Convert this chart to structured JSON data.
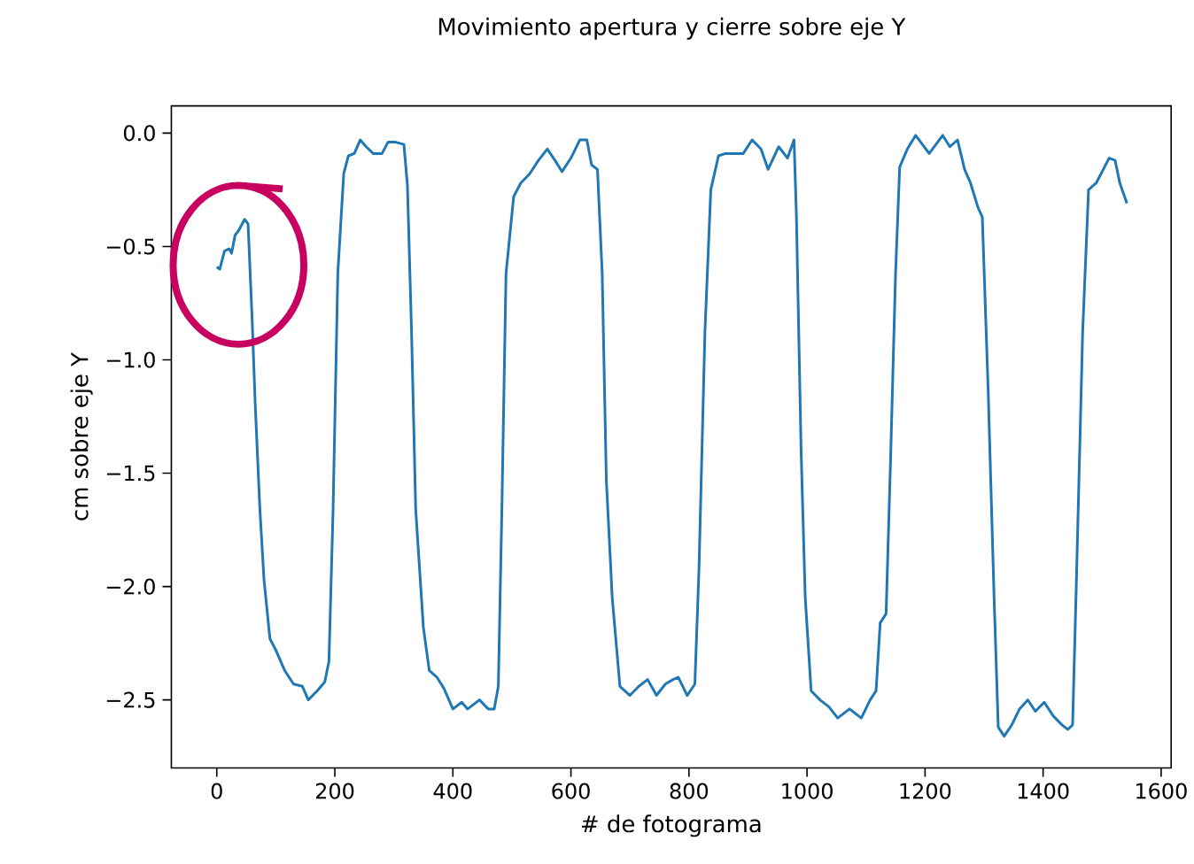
{
  "chart_data": {
    "type": "line",
    "title": "Movimiento apertura y cierre sobre eje Y",
    "xlabel": "# de fotograma",
    "ylabel": "cm sobre eje Y",
    "xlim": [
      -77,
      1617
    ],
    "ylim": [
      -2.8,
      0.12
    ],
    "xticks": [
      0,
      200,
      400,
      600,
      800,
      1000,
      1200,
      1400,
      1600
    ],
    "yticks": [
      {
        "value": 0,
        "label": "0.0"
      },
      {
        "value": -0.5,
        "label": "−0.5"
      },
      {
        "value": -1,
        "label": "−1.0"
      },
      {
        "value": -1.5,
        "label": "−1.5"
      },
      {
        "value": -2,
        "label": "−2.0"
      },
      {
        "value": -2.5,
        "label": "−2.5"
      }
    ],
    "grid": false,
    "marker": "none",
    "line_style": "solid",
    "series": [
      {
        "color": "#1f77b4",
        "x": [
          0,
          5,
          13,
          21,
          25,
          31,
          37,
          47,
          53,
          60,
          65,
          73,
          80,
          90,
          100,
          115,
          130,
          145,
          155,
          170,
          183,
          190,
          197,
          205,
          215,
          223,
          233,
          243,
          253,
          265,
          280,
          290,
          303,
          317,
          323,
          330,
          337,
          350,
          360,
          373,
          385,
          400,
          415,
          425,
          445,
          460,
          470,
          477,
          483,
          490,
          503,
          515,
          530,
          545,
          560,
          573,
          585,
          600,
          615,
          627,
          635,
          645,
          653,
          660,
          670,
          683,
          700,
          715,
          730,
          745,
          760,
          773,
          782,
          797,
          810,
          817,
          827,
          837,
          850,
          862,
          882,
          892,
          907,
          922,
          934,
          952,
          967,
          978,
          982,
          990,
          997,
          1007,
          1022,
          1037,
          1052,
          1072,
          1092,
          1107,
          1117,
          1124,
          1134,
          1142,
          1150,
          1157,
          1170,
          1184,
          1207,
          1230,
          1242,
          1255,
          1267,
          1277,
          1290,
          1297,
          1307,
          1317,
          1324,
          1334,
          1347,
          1360,
          1374,
          1387,
          1402,
          1417,
          1432,
          1442,
          1450,
          1457,
          1467,
          1477,
          1490,
          1502,
          1512,
          1522,
          1530,
          1542
        ],
        "values": [
          -0.59,
          -0.6,
          -0.52,
          -0.51,
          -0.53,
          -0.45,
          -0.43,
          -0.38,
          -0.4,
          -0.83,
          -1.19,
          -1.66,
          -1.97,
          -2.23,
          -2.28,
          -2.37,
          -2.43,
          -2.44,
          -2.5,
          -2.46,
          -2.42,
          -2.33,
          -1.66,
          -0.62,
          -0.18,
          -0.1,
          -0.09,
          -0.03,
          -0.06,
          -0.09,
          -0.09,
          -0.04,
          -0.04,
          -0.05,
          -0.23,
          -0.88,
          -1.66,
          -2.18,
          -2.37,
          -2.4,
          -2.45,
          -2.54,
          -2.51,
          -2.54,
          -2.5,
          -2.54,
          -2.54,
          -2.44,
          -1.66,
          -0.62,
          -0.28,
          -0.22,
          -0.18,
          -0.12,
          -0.07,
          -0.12,
          -0.17,
          -0.11,
          -0.03,
          -0.03,
          -0.14,
          -0.16,
          -0.62,
          -1.53,
          -2.05,
          -2.44,
          -2.48,
          -2.44,
          -2.41,
          -2.48,
          -2.43,
          -2.41,
          -2.4,
          -2.48,
          -2.43,
          -1.92,
          -0.88,
          -0.25,
          -0.1,
          -0.09,
          -0.09,
          -0.09,
          -0.03,
          -0.07,
          -0.16,
          -0.06,
          -0.11,
          -0.03,
          -0.36,
          -1.4,
          -2.05,
          -2.46,
          -2.5,
          -2.53,
          -2.58,
          -2.54,
          -2.58,
          -2.5,
          -2.46,
          -2.16,
          -2.12,
          -1.4,
          -0.62,
          -0.15,
          -0.07,
          -0.01,
          -0.09,
          -0.01,
          -0.06,
          -0.03,
          -0.16,
          -0.22,
          -0.33,
          -0.37,
          -1.14,
          -2.05,
          -2.62,
          -2.66,
          -2.61,
          -2.54,
          -2.5,
          -2.55,
          -2.51,
          -2.57,
          -2.61,
          -2.63,
          -2.61,
          -1.92,
          -0.88,
          -0.25,
          -0.22,
          -0.16,
          -0.11,
          -0.12,
          -0.22,
          -0.31
        ]
      }
    ]
  }
}
